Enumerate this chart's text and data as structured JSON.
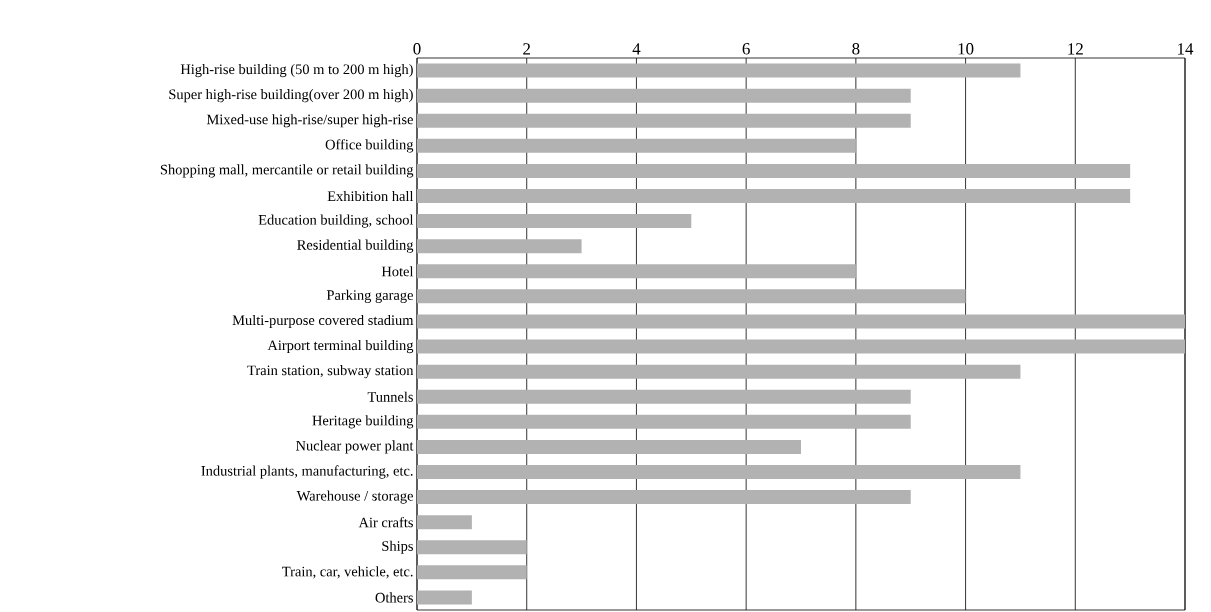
{
  "chart_data": {
    "type": "bar",
    "orientation": "horizontal",
    "categories": [
      "High-rise building (50 m to 200 m high)",
      "Super high-rise building(over 200 m high)",
      "Mixed-use high-rise/super high-rise",
      "Office building",
      "Shopping mall, mercantile or retail building",
      "Exhibition hall",
      "Education building, school",
      "Residential building",
      "Hotel",
      "Parking garage",
      "Multi-purpose covered stadium",
      "Airport terminal building",
      "Train station, subway station",
      "Tunnels",
      "Heritage building",
      "Nuclear power plant",
      "Industrial plants, manufacturing, etc.",
      "Warehouse / storage",
      "Air crafts",
      "Ships",
      "Train, car, vehicle, etc.",
      "Others"
    ],
    "values": [
      11,
      9,
      9,
      8,
      13,
      13,
      5,
      3,
      8,
      10,
      14,
      14,
      11,
      9,
      9,
      7,
      11,
      9,
      1,
      2,
      2,
      1
    ],
    "color": "#b2b2b2",
    "xlim": [
      0,
      14
    ],
    "xticks": [
      0,
      2,
      4,
      6,
      8,
      10,
      12,
      14
    ],
    "grid": "x"
  }
}
